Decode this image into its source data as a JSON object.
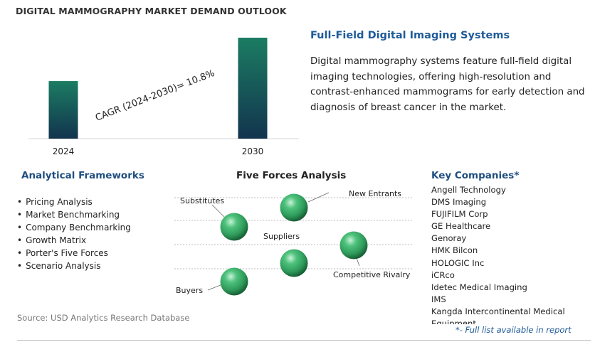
{
  "header": {
    "title": "DIGITAL MAMMOGRAPHY MARKET DEMAND OUTLOOK"
  },
  "chart_data": {
    "type": "bar",
    "categories": [
      "2024",
      "2030"
    ],
    "values": [
      0.57,
      1.0
    ],
    "annotation": "CAGR (2024-2030)=   10.8%",
    "colors": {
      "bar_top": "#1b7c62",
      "bar_bottom": "#12344e",
      "axis": "#d6d6d6"
    }
  },
  "section": {
    "heading": "Full-Field Digital Imaging Systems",
    "description": "Digital mammography systems feature full-field digital imaging technologies, offering high-resolution and contrast-enhanced mammograms for early detection and diagnosis of breast cancer in the market."
  },
  "frameworks": {
    "heading": "Analytical Frameworks",
    "items": [
      "Pricing Analysis",
      "Market Benchmarking",
      "Company Benchmarking",
      "Growth Matrix",
      "Porter's Five Forces",
      "Scenario Analysis"
    ]
  },
  "five_forces": {
    "heading": "Five Forces Analysis",
    "forces": [
      {
        "label": "Substitutes"
      },
      {
        "label": "New Entrants"
      },
      {
        "label": "Suppliers"
      },
      {
        "label": "Competitive Rivalry"
      },
      {
        "label": "Buyers"
      }
    ],
    "ball_color": "#2e9a5a"
  },
  "companies": {
    "heading": "Key Companies*",
    "items": [
      "Angell Technology",
      "DMS Imaging",
      "FUJIFILM Corp",
      "GE Healthcare",
      "Genoray",
      "HMK Bilcon",
      "HOLOGIC Inc",
      "iCRco",
      "Idetec Medical Imaging",
      "IMS",
      "Kangda Intercontinental Medical Equipment"
    ],
    "note": "*- Full list available in report"
  },
  "footer": {
    "source": "Source: USD Analytics Research Database"
  }
}
